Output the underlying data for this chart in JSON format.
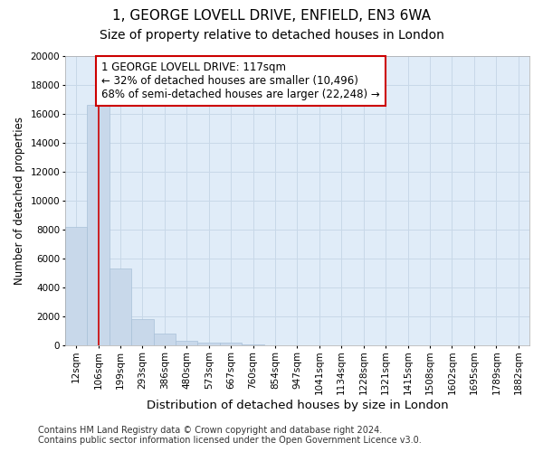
{
  "title1": "1, GEORGE LOVELL DRIVE, ENFIELD, EN3 6WA",
  "title2": "Size of property relative to detached houses in London",
  "xlabel": "Distribution of detached houses by size in London",
  "ylabel": "Number of detached properties",
  "categories": [
    "12sqm",
    "106sqm",
    "199sqm",
    "293sqm",
    "386sqm",
    "480sqm",
    "573sqm",
    "667sqm",
    "760sqm",
    "854sqm",
    "947sqm",
    "1041sqm",
    "1134sqm",
    "1228sqm",
    "1321sqm",
    "1415sqm",
    "1508sqm",
    "1602sqm",
    "1695sqm",
    "1789sqm",
    "1882sqm"
  ],
  "values": [
    8200,
    16600,
    5300,
    1800,
    800,
    300,
    200,
    200,
    100,
    0,
    0,
    0,
    0,
    0,
    0,
    0,
    0,
    0,
    0,
    0,
    0
  ],
  "bar_color": "#c8d8ea",
  "bar_edge_color": "#a8c0d8",
  "vline_x": 1.0,
  "vline_color": "#cc0000",
  "annotation_text": "1 GEORGE LOVELL DRIVE: 117sqm\n← 32% of detached houses are smaller (10,496)\n68% of semi-detached houses are larger (22,248) →",
  "annotation_box_color": "#ffffff",
  "annotation_box_edge": "#cc0000",
  "ylim": [
    0,
    20000
  ],
  "yticks": [
    0,
    2000,
    4000,
    6000,
    8000,
    10000,
    12000,
    14000,
    16000,
    18000,
    20000
  ],
  "grid_color": "#c8d8e8",
  "background_color": "#e0ecf8",
  "footer_text": "Contains HM Land Registry data © Crown copyright and database right 2024.\nContains public sector information licensed under the Open Government Licence v3.0.",
  "title1_fontsize": 11,
  "title2_fontsize": 10,
  "xlabel_fontsize": 9.5,
  "ylabel_fontsize": 8.5,
  "tick_fontsize": 7.5,
  "annotation_fontsize": 8.5,
  "footer_fontsize": 7
}
